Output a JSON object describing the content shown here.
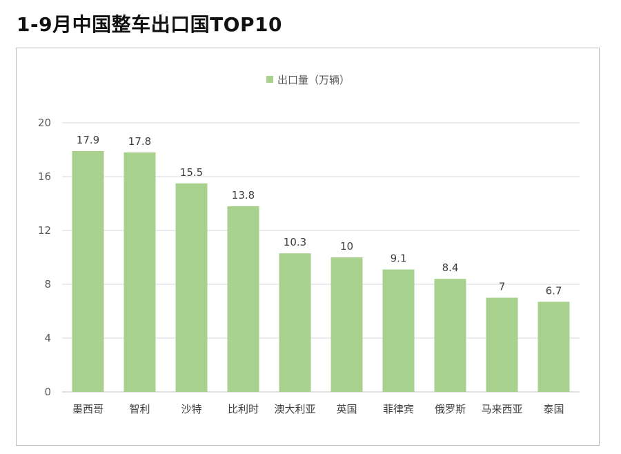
{
  "page": {
    "title": "1-9月中国整车出口国TOP10"
  },
  "chart_data": {
    "type": "bar",
    "title": "",
    "categories": [
      "墨西哥",
      "智利",
      "沙特",
      "比利时",
      "澳大利亚",
      "英国",
      "菲律宾",
      "俄罗斯",
      "马来西亚",
      "泰国"
    ],
    "series": [
      {
        "name": "出口量（万辆）",
        "values": [
          17.9,
          17.8,
          15.5,
          13.8,
          10.3,
          10,
          9.1,
          8.4,
          7,
          6.7
        ],
        "labels": [
          "17.9",
          "17.8",
          "15.5",
          "13.8",
          "10.3",
          "10",
          "9.1",
          "8.4",
          "7",
          "6.7"
        ],
        "color": "#a9d18e"
      }
    ],
    "ylim": [
      0,
      20
    ],
    "yticks": [
      "0",
      "4",
      "8",
      "12",
      "16",
      "20"
    ],
    "xlabel": "",
    "ylabel": "",
    "grid": true,
    "legend": "top-center"
  },
  "colors": {
    "bar": "#a9d18e",
    "grid": "#d9d9d9",
    "axis": "#bfbfbf"
  }
}
